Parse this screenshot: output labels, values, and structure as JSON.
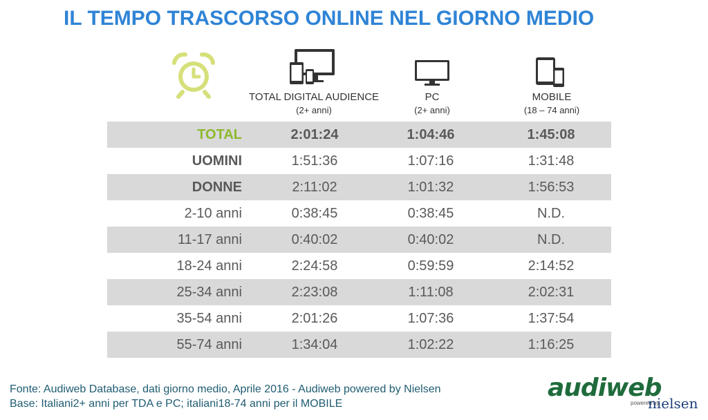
{
  "title": "IL TEMPO TRASCORSO ONLINE NEL GIORNO MEDIO",
  "icons": {
    "clock": "alarm-clock-icon",
    "tda": "multi-device-icon",
    "pc": "monitor-icon",
    "mobile": "tablet-phone-icon"
  },
  "colors": {
    "title": "#2f84d6",
    "total_label": "#8db92e",
    "shaded_row": "#d9d9d9",
    "footer_text": "#1f5c72"
  },
  "columns": [
    {
      "label": "TOTAL DIGITAL AUDIENCE",
      "sub": "(2+ anni)"
    },
    {
      "label": "PC",
      "sub": "(2+ anni)"
    },
    {
      "label": "MOBILE",
      "sub": "(18 – 74 anni)"
    }
  ],
  "rows": [
    {
      "label": "TOTAL",
      "tda": "2:01:24",
      "pc": "1:04:46",
      "mobile": "1:45:08"
    },
    {
      "label": "UOMINI",
      "tda": "1:51:36",
      "pc": "1:07:16",
      "mobile": "1:31:48"
    },
    {
      "label": "DONNE",
      "tda": "2:11:02",
      "pc": "1:01:32",
      "mobile": "1:56:53"
    },
    {
      "label": "2-10 anni",
      "tda": "0:38:45",
      "pc": "0:38:45",
      "mobile": "N.D."
    },
    {
      "label": "11-17 anni",
      "tda": "0:40:02",
      "pc": "0:40:02",
      "mobile": "N.D."
    },
    {
      "label": "18-24 anni",
      "tda": "2:24:58",
      "pc": "0:59:59",
      "mobile": "2:14:52"
    },
    {
      "label": "25-34 anni",
      "tda": "2:23:08",
      "pc": "1:11:08",
      "mobile": "2:02:31"
    },
    {
      "label": "35-54 anni",
      "tda": "2:01:26",
      "pc": "1:07:36",
      "mobile": "1:37:54"
    },
    {
      "label": "55-74 anni",
      "tda": "1:34:04",
      "pc": "1:02:22",
      "mobile": "1:16:25"
    }
  ],
  "footer": {
    "source": "Fonte: Audiweb Database, dati giorno medio, Aprile 2016 - Audiweb powered by Nielsen",
    "base": "Base: Italiani2+ anni per TDA e PC; italiani18-74 anni per il MOBILE"
  },
  "logo": {
    "name": "audiweb",
    "powered": "powered by",
    "partner": "nielsen"
  }
}
